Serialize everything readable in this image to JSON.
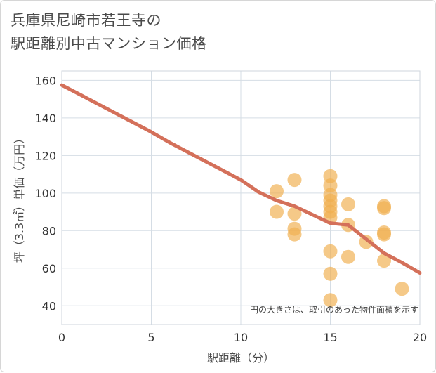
{
  "title": {
    "line1": "兵庫県尼崎市若王寺の",
    "line2": "駅距離別中古マンション価格"
  },
  "colors": {
    "bubble": "#f0b050",
    "trend": "#d4705a",
    "grid": "#d5dde5",
    "plot_border": "#cfd6de"
  },
  "chart_data": {
    "type": "scatter",
    "xlabel": "駅距離（分）",
    "ylabel": "坪（3.3㎡）単価（万円）",
    "xlim": [
      0,
      20
    ],
    "ylim": [
      30,
      165
    ],
    "xticks": [
      0,
      5,
      10,
      15,
      20
    ],
    "yticks": [
      40,
      60,
      80,
      100,
      120,
      140,
      160
    ],
    "note": "円の大きさは、取引のあった物件面積を示す",
    "bubble_size_reference": "円の大きさは、取引のあった物件面積を示す",
    "points": [
      {
        "x": 12,
        "y": 101
      },
      {
        "x": 12,
        "y": 90
      },
      {
        "x": 13,
        "y": 107
      },
      {
        "x": 13,
        "y": 89
      },
      {
        "x": 13,
        "y": 81
      },
      {
        "x": 13,
        "y": 78
      },
      {
        "x": 15,
        "y": 109
      },
      {
        "x": 15,
        "y": 104
      },
      {
        "x": 15,
        "y": 99
      },
      {
        "x": 15,
        "y": 96
      },
      {
        "x": 15,
        "y": 93
      },
      {
        "x": 15,
        "y": 90
      },
      {
        "x": 15,
        "y": 87
      },
      {
        "x": 15,
        "y": 69
      },
      {
        "x": 15,
        "y": 57
      },
      {
        "x": 15,
        "y": 43
      },
      {
        "x": 16,
        "y": 94
      },
      {
        "x": 16,
        "y": 83
      },
      {
        "x": 16,
        "y": 66
      },
      {
        "x": 17,
        "y": 74
      },
      {
        "x": 18,
        "y": 93
      },
      {
        "x": 18,
        "y": 92
      },
      {
        "x": 18,
        "y": 79
      },
      {
        "x": 18,
        "y": 78
      },
      {
        "x": 18,
        "y": 64
      },
      {
        "x": 19,
        "y": 49
      }
    ],
    "trend": {
      "name": "trend",
      "x": [
        0,
        1,
        2,
        3,
        4,
        5,
        6,
        7,
        8,
        9,
        10,
        11,
        12,
        13,
        14,
        15,
        16,
        17,
        18,
        19,
        20
      ],
      "y": [
        157.5,
        152.5,
        147.5,
        142.5,
        137.5,
        132.5,
        127,
        122,
        117,
        112,
        107,
        100.5,
        96,
        93,
        88.5,
        84,
        83,
        75.5,
        68,
        63,
        57.5
      ]
    }
  }
}
